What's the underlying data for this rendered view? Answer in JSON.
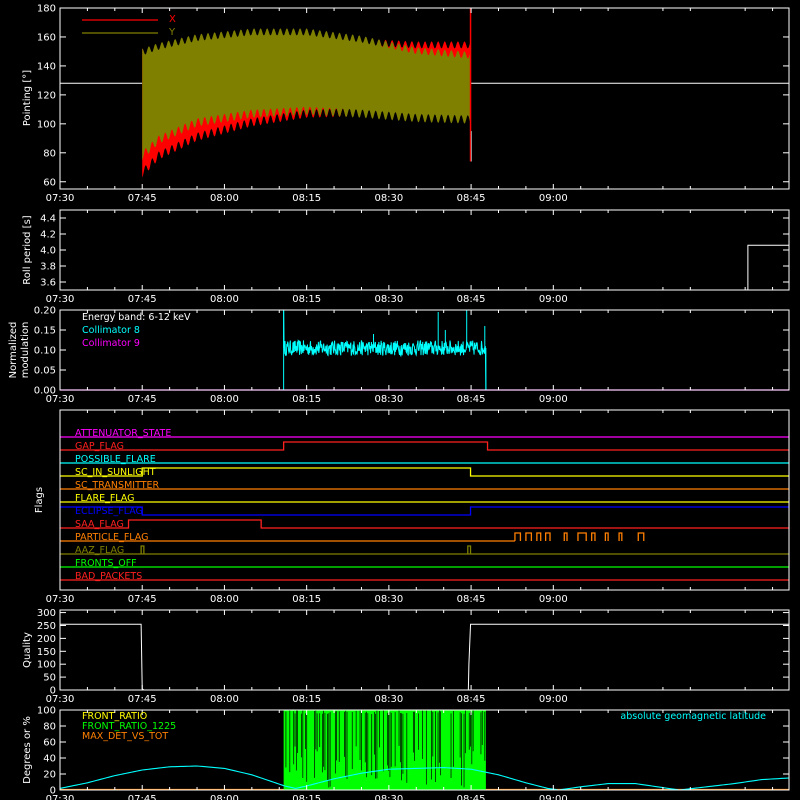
{
  "colors": {
    "background": "#000000",
    "axes": "#ffffff",
    "x_pointing": "#ff0000",
    "y_pointing": "#808000",
    "collimator8": "#00ffff",
    "collimator9": "#ff00ff",
    "quality": "#ffffff",
    "front_ratio": "#ffff00",
    "front_ratio_1225": "#00ff00",
    "max_det": "#ff8000",
    "geomag": "#00ffff"
  },
  "time_axis": {
    "range_minutes": [
      450,
      583
    ],
    "tick_minutes": [
      450,
      465,
      480,
      495,
      510,
      525,
      540
    ],
    "tick_labels": [
      "07:30",
      "07:45",
      "08:00",
      "08:15",
      "08:30",
      "08:45",
      "09:00"
    ]
  },
  "chart_data": [
    {
      "type": "line",
      "title": "",
      "ylabel": "Pointing [°]",
      "ylim": [
        55,
        180
      ],
      "yticks": [
        60,
        80,
        100,
        120,
        140,
        160,
        180
      ],
      "legend": [
        "X",
        "Y"
      ],
      "legend_position": "top-left",
      "reference_line": 128,
      "series": [
        {
          "name": "X",
          "start": 465.0,
          "end": 524.9,
          "oscillation_period_min": 1.2,
          "upper": [
            [
              465,
              152
            ],
            [
              468,
              149
            ],
            [
              475,
              155
            ],
            [
              485,
              160
            ],
            [
              495,
              160
            ],
            [
              505,
              159
            ],
            [
              515,
              157
            ],
            [
              524.5,
              157
            ]
          ],
          "lower": [
            [
              465,
              63
            ],
            [
              468,
              75
            ],
            [
              475,
              88
            ],
            [
              485,
              98
            ],
            [
              495,
              104
            ],
            [
              505,
              105
            ],
            [
              515,
              104
            ],
            [
              524.5,
              104
            ]
          ]
        },
        {
          "name": "Y",
          "start": 465.0,
          "end": 524.9,
          "oscillation_period_min": 1.2,
          "upper": [
            [
              465,
              152
            ],
            [
              468,
              156
            ],
            [
              475,
              162
            ],
            [
              485,
              166
            ],
            [
              495,
              166
            ],
            [
              505,
              161
            ],
            [
              515,
              153
            ],
            [
              524.5,
              150
            ]
          ],
          "lower": [
            [
              465,
              75
            ],
            [
              468,
              86
            ],
            [
              475,
              98
            ],
            [
              485,
              104
            ],
            [
              495,
              106
            ],
            [
              505,
              104
            ],
            [
              515,
              101
            ],
            [
              524.5,
              100
            ]
          ]
        }
      ]
    },
    {
      "type": "line",
      "title": "",
      "ylabel": "Roll period [s]",
      "ylim": [
        3.5,
        4.5
      ],
      "yticks": [
        3.6,
        3.8,
        4.0,
        4.2,
        4.4
      ],
      "series": [
        {
          "name": "",
          "points": [
            [
              575.5,
              3.5
            ],
            [
              575.5,
              4.06
            ],
            [
              583,
              4.06
            ]
          ]
        }
      ]
    },
    {
      "type": "line",
      "title": "",
      "ylabel": "Normalized modulation",
      "ylim": [
        0,
        0.2
      ],
      "yticks": [
        0.0,
        0.05,
        0.1,
        0.15,
        0.2
      ],
      "annotation": "Energy band: 6-12 keV",
      "legend": [
        "Collimator 8",
        "Collimator 9"
      ],
      "legend_position": "top-left",
      "series": [
        {
          "name": "Collimator 8",
          "start": 490.8,
          "end": 527.7,
          "mean": 0.105,
          "noise": 0.012,
          "spikes": [
            [
              490.8,
              0.2
            ],
            [
              507.2,
              0.14
            ],
            [
              519.0,
              0.195
            ],
            [
              520.3,
              0.15
            ],
            [
              524.2,
              0.2
            ],
            [
              527.5,
              0.16
            ],
            [
              527.7,
              0.0
            ]
          ]
        },
        {
          "name": "Collimator 9",
          "points": [
            [
              450,
              0.0
            ],
            [
              583,
              0.0
            ]
          ]
        }
      ]
    },
    {
      "type": "line",
      "title": "",
      "ylabel": "Flags",
      "flags": [
        {
          "name": "ATTENUATOR_STATE",
          "color": "#ff00ff",
          "segments": [
            [
              450,
              583,
              0
            ]
          ]
        },
        {
          "name": "GAP_FLAG",
          "color": "#ff2020",
          "segments": [
            [
              450,
              490.8,
              0
            ],
            [
              490.8,
              528,
              1
            ],
            [
              528,
              583,
              0
            ]
          ]
        },
        {
          "name": "POSSIBLE_FLARE",
          "color": "#00ffff",
          "segments": [
            [
              450,
              583,
              0
            ]
          ]
        },
        {
          "name": "SC_IN_SUNLIGHT",
          "color": "#ffff00",
          "segments": [
            [
              450,
              465,
              0
            ],
            [
              465,
              524.9,
              1
            ],
            [
              524.9,
              583,
              0
            ]
          ]
        },
        {
          "name": "SC_TRANSMITTER",
          "color": "#ff8000",
          "segments": [
            [
              450,
              583,
              0
            ]
          ]
        },
        {
          "name": "FLARE_FLAG",
          "color": "#ffff00",
          "segments": [
            [
              450,
              583,
              0
            ]
          ]
        },
        {
          "name": "ECLIPSE_FLAG",
          "color": "#0000ff",
          "segments": [
            [
              450,
              465,
              1
            ],
            [
              465,
              524.9,
              0
            ],
            [
              524.9,
              583,
              1
            ]
          ]
        },
        {
          "name": "SAA_FLAG",
          "color": "#ff2020",
          "segments": [
            [
              450,
              462.5,
              0
            ],
            [
              462.5,
              486.7,
              1
            ],
            [
              486.7,
              583,
              0
            ]
          ]
        },
        {
          "name": "PARTICLE_FLAG",
          "color": "#ff8000",
          "segments": [
            [
              450,
              533,
              0
            ]
          ],
          "pulses": [
            [
              533,
              534
            ],
            [
              535,
              536
            ],
            [
              537,
              537.7
            ],
            [
              538.6,
              539.4
            ],
            [
              542,
              542.5
            ],
            [
              544.5,
              546
            ],
            [
              547,
              547.6
            ],
            [
              549.5,
              550
            ],
            [
              552,
              552.5
            ],
            [
              555.5,
              556.5
            ]
          ]
        },
        {
          "name": "AAZ_FLAG",
          "color": "#808000",
          "segments": [
            [
              450,
              583,
              0
            ]
          ],
          "pulses": [
            [
              464.8,
              465.3
            ],
            [
              524.4,
              524.9
            ]
          ]
        },
        {
          "name": "FRONTS_OFF",
          "color": "#00ff00",
          "segments": [
            [
              450,
              583,
              0
            ]
          ]
        },
        {
          "name": "BAD_PACKETS",
          "color": "#ff2020",
          "segments": [
            [
              450,
              583,
              0
            ]
          ]
        }
      ]
    },
    {
      "type": "line",
      "title": "",
      "ylabel": "Quality",
      "ylim": [
        0,
        310
      ],
      "yticks": [
        0,
        50,
        100,
        150,
        200,
        250,
        300
      ],
      "series": [
        {
          "name": "",
          "points": [
            [
              450,
              255
            ],
            [
              464.8,
              255
            ],
            [
              465.0,
              5
            ],
            [
              465.3,
              0
            ],
            [
              524.5,
              0
            ],
            [
              524.6,
              100
            ],
            [
              524.9,
              255
            ],
            [
              583,
              255
            ]
          ]
        }
      ]
    },
    {
      "type": "line",
      "title": "",
      "ylabel": "Degrees or %",
      "ylim": [
        0,
        100
      ],
      "yticks": [
        0,
        20,
        40,
        60,
        80,
        100
      ],
      "legend": [
        "FRONT_RATIO",
        "FRONT_RATIO_1225",
        "MAX_DET_VS_TOT"
      ],
      "legend_position": "top-left",
      "annotation": "absolute geomagnetic latitude",
      "series": [
        {
          "name": "absolute geomagnetic latitude",
          "points": [
            [
              450,
              2
            ],
            [
              455,
              9
            ],
            [
              460,
              18
            ],
            [
              465,
              25
            ],
            [
              470,
              29
            ],
            [
              475,
              30
            ],
            [
              480,
              27
            ],
            [
              485,
              19
            ],
            [
              488,
              12
            ],
            [
              491,
              5
            ],
            [
              493,
              2
            ],
            [
              495,
              5
            ],
            [
              500,
              14
            ],
            [
              505,
              21
            ],
            [
              510,
              26
            ],
            [
              515,
              27
            ],
            [
              520,
              28
            ],
            [
              525,
              26
            ],
            [
              530,
              19
            ],
            [
              535,
              9
            ],
            [
              539,
              2
            ],
            [
              541,
              0
            ],
            [
              545,
              4
            ],
            [
              550,
              8
            ],
            [
              555,
              8
            ],
            [
              560,
              3
            ],
            [
              563,
              0
            ],
            [
              568,
              4
            ],
            [
              573,
              8
            ],
            [
              578,
              13
            ],
            [
              583,
              15
            ]
          ]
        },
        {
          "name": "FRONT_RATIO_1225",
          "start": 490.8,
          "end": 527.7,
          "level": 100
        },
        {
          "name": "FRONT_RATIO",
          "points": [
            [
              450,
              0
            ],
            [
              583,
              0
            ]
          ]
        },
        {
          "name": "MAX_DET_VS_TOT",
          "points": [
            [
              450,
              0
            ],
            [
              583,
              0
            ]
          ]
        }
      ]
    }
  ]
}
